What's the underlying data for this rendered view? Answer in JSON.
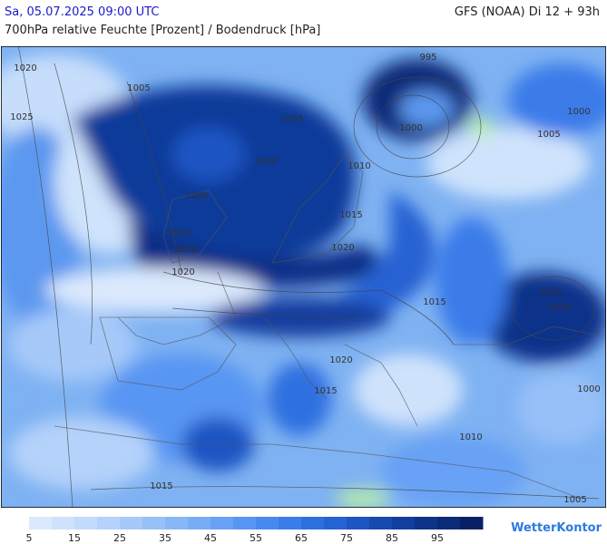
{
  "header": {
    "datetime": "Sa, 05.07.2025 09:00 UTC",
    "model": "GFS (NOAA) Di 12 + 93h",
    "subtitle": "700hPa relative Feuchte [Prozent] / Bodendruck [hPa]"
  },
  "isobar_labels": [
    "1020",
    "995",
    "1005",
    "1025",
    "1005",
    "1000",
    "1000",
    "1005",
    "1000",
    "1010",
    "1005",
    "1015",
    "1010",
    "1015",
    "1020",
    "1020",
    "1015",
    "1015",
    "1010",
    "1020",
    "1015",
    "1000",
    "1010",
    "1015",
    "1005"
  ],
  "legend": {
    "labels": [
      5,
      15,
      25,
      35,
      45,
      55,
      65,
      75,
      85,
      95
    ],
    "colors": [
      "#dbe9fd",
      "#cfe2fc",
      "#c2dafb",
      "#b4d2fa",
      "#a6c9f9",
      "#97c0f8",
      "#88b6f7",
      "#78acf6",
      "#68a1f5",
      "#5896f3",
      "#4889f0",
      "#3a7ce9",
      "#2e6fe0",
      "#2562d3",
      "#1d55c3",
      "#1749b1",
      "#123e9e",
      "#0e338a",
      "#0b2a78",
      "#082166"
    ]
  },
  "brand": "WetterKontor"
}
